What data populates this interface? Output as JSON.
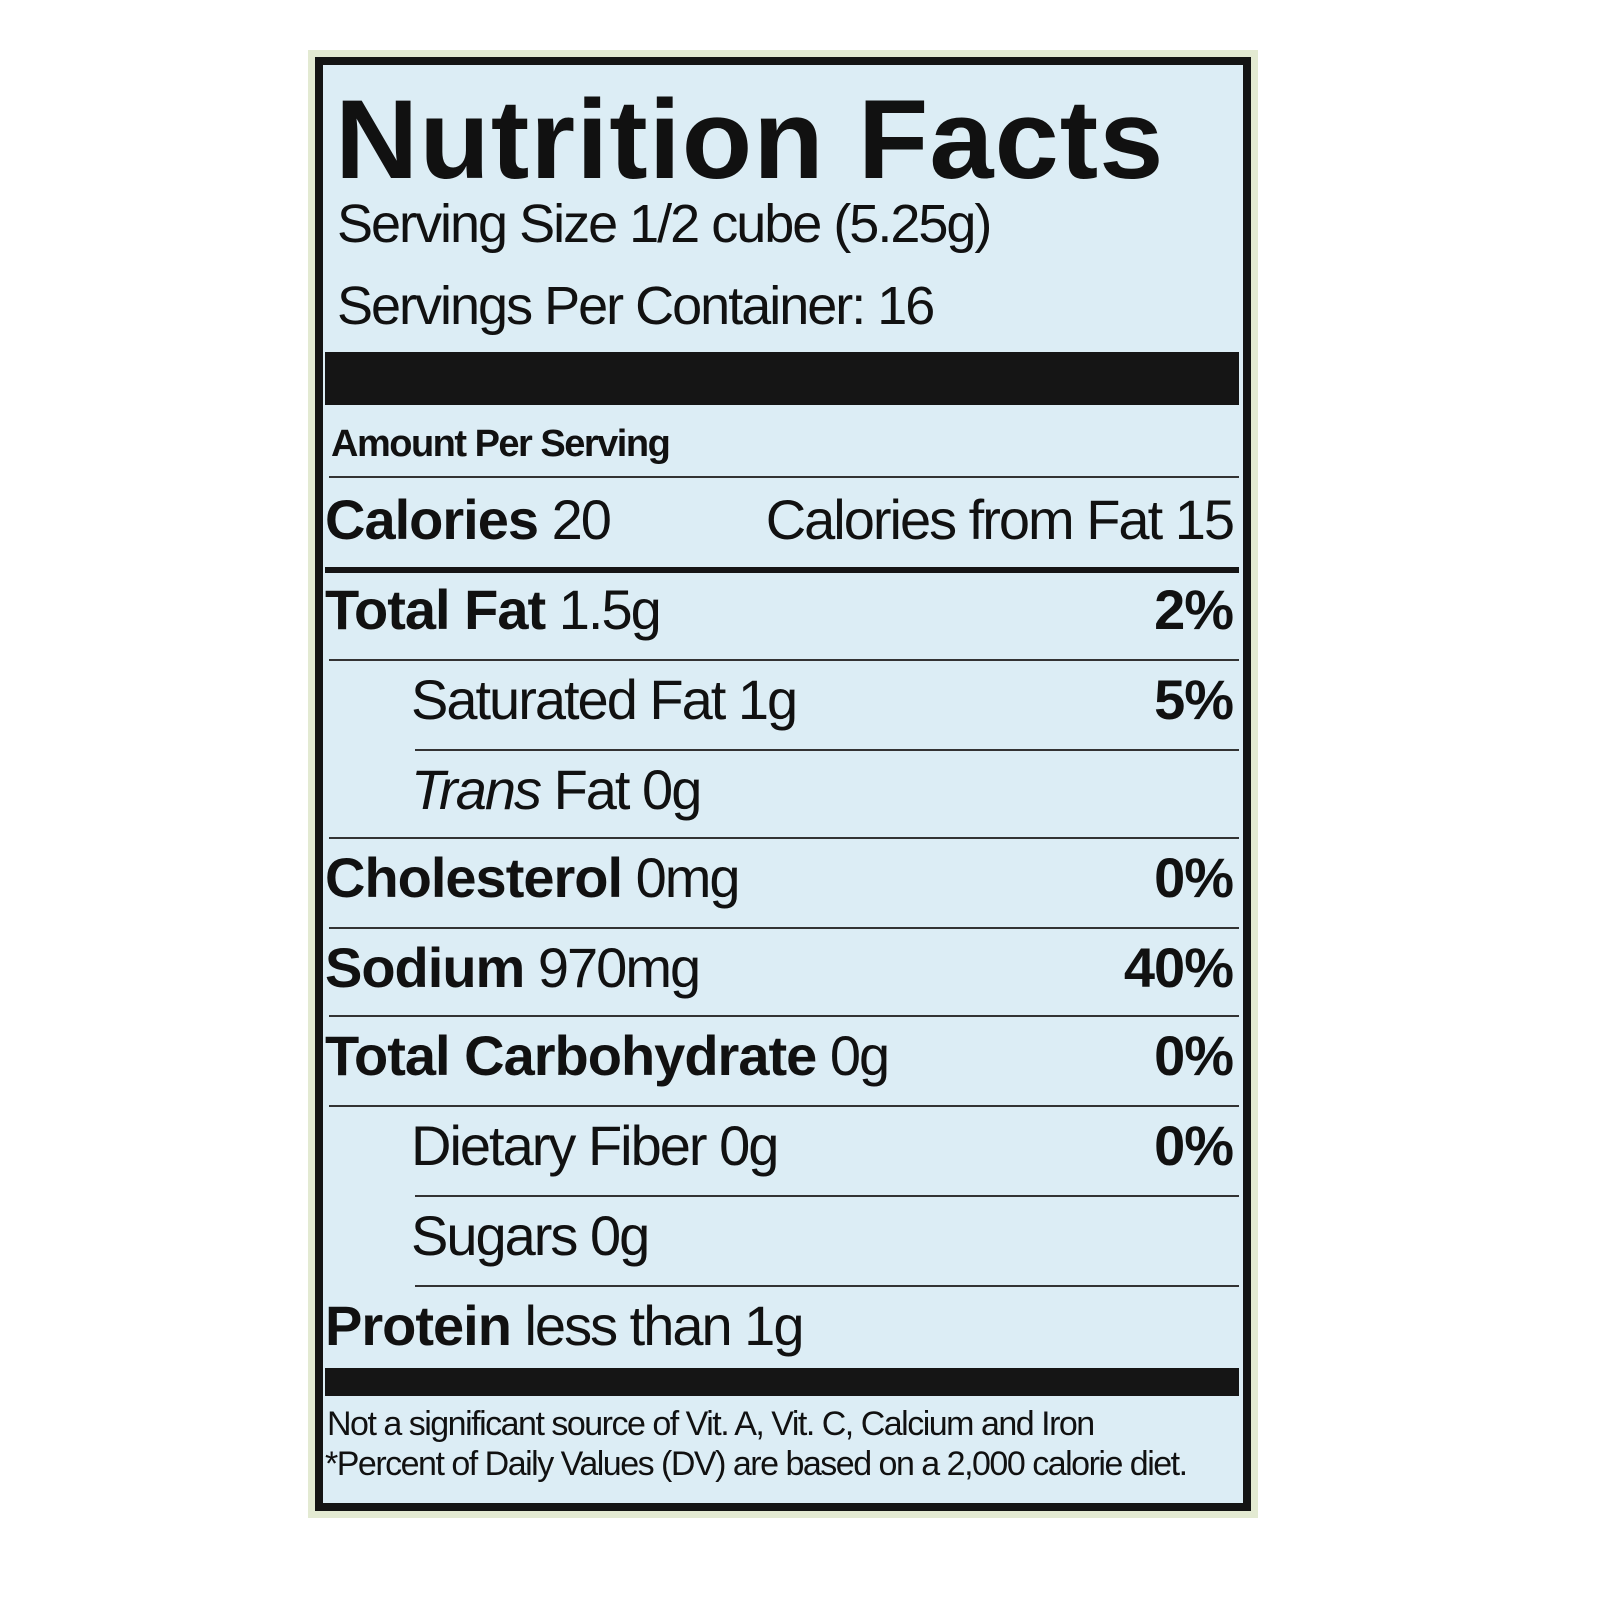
{
  "title": "Nutrition Facts",
  "serving_size": "Serving Size 1/2 cube (5.25g)",
  "servings_per_container": "Servings Per Container: 16",
  "amount_per_serving": "Amount Per Serving",
  "calories": {
    "label": "Calories",
    "value": "20",
    "from_fat_label": "Calories from Fat",
    "from_fat_value": "15"
  },
  "nutrients": [
    {
      "label": "Total Fat",
      "amount": "1.5g",
      "dv": "2%"
    },
    {
      "label": "Saturated Fat",
      "amount": "1g",
      "dv": "5%"
    },
    {
      "label": "Trans",
      "suffix": "Fat",
      "amount": "0g",
      "dv": ""
    },
    {
      "label": "Cholesterol",
      "amount": "0mg",
      "dv": "0%"
    },
    {
      "label": "Sodium",
      "amount": "970mg",
      "dv": "40%"
    },
    {
      "label": "Total Carbohydrate",
      "amount": "0g",
      "dv": "0%"
    },
    {
      "label": "Dietary Fiber",
      "amount": "0g",
      "dv": "0%"
    },
    {
      "label": "Sugars",
      "amount": "0g",
      "dv": ""
    },
    {
      "label": "Protein",
      "amount": "less than 1g",
      "dv": ""
    }
  ],
  "footnotes": [
    "Not a significant source of Vit. A, Vit. C, Calcium and Iron",
    "*Percent of Daily Values (DV) are based on a 2,000 calorie diet."
  ],
  "colors": {
    "label_bg": "#dcedf5",
    "ink": "#141414",
    "outer": "#e3ead2"
  }
}
